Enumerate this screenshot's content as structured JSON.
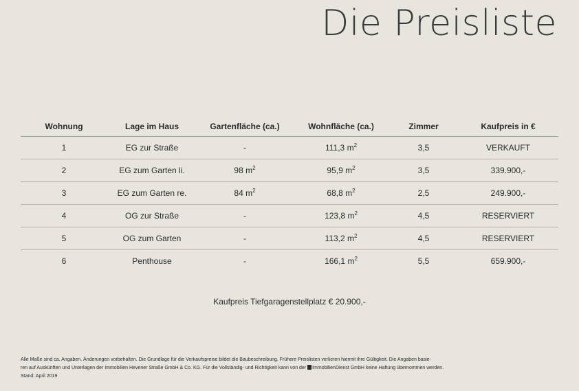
{
  "title": "Die Preisliste",
  "table": {
    "headers": [
      "Wohnung",
      "Lage im Haus",
      "Gartenfläche (ca.)",
      "Wohnfläche (ca.)",
      "Zimmer",
      "Kaufpreis in €"
    ],
    "area_unit": "m",
    "area_exp": "2",
    "rows": [
      {
        "nr": "1",
        "lage": "EG zur Straße",
        "garten": "-",
        "garten_unit": "",
        "garten_exp": "",
        "wohn": "111,3 ",
        "zimmer": "3,5",
        "preis": "VERKAUFT"
      },
      {
        "nr": "2",
        "lage": "EG zum Garten li.",
        "garten": "98 ",
        "garten_unit": "m",
        "garten_exp": "2",
        "wohn": "95,9 ",
        "zimmer": "3,5",
        "preis": "339.900,-"
      },
      {
        "nr": "3",
        "lage": "EG zum Garten re.",
        "garten": "84 ",
        "garten_unit": "m",
        "garten_exp": "2",
        "wohn": "68,8 ",
        "zimmer": "2,5",
        "preis": "249.900,-"
      },
      {
        "nr": "4",
        "lage": "OG zur Straße",
        "garten": "-",
        "garten_unit": "",
        "garten_exp": "",
        "wohn": "123,8 ",
        "zimmer": "4,5",
        "preis": "RESERVIERT"
      },
      {
        "nr": "5",
        "lage": "OG zum Garten",
        "garten": "-",
        "garten_unit": "",
        "garten_exp": "",
        "wohn": "113,2 ",
        "zimmer": "4,5",
        "preis": "RESERVIERT"
      },
      {
        "nr": "6",
        "lage": "Penthouse",
        "garten": "-",
        "garten_unit": "",
        "garten_exp": "",
        "wohn": "166,1 ",
        "zimmer": "5,5",
        "preis": "659.900,-"
      }
    ]
  },
  "parking_note": "Kaufpreis Tiefgaragenstellplatz € 20.900,-",
  "footer": {
    "line1": "Alle Maße sind ca. Angaben. Änderungen vorbehalten. Die Grundlage für die Verkaufspreise bildet die Baubeschreibung. Frühere Preislisten verlieren hiermit ihre Gültigkeit. Die Angaben basie-",
    "line2": "ren auf Auskünften und Unterlagen der Immobilien Hevener Straße GmbH & Co. KG. Für die Vollständig- und Richtigkeit kann von der ",
    "line2_brand": "ImmobilienDienst GmbH keine Haftung übernommen werden.",
    "line3": "Stand: April 2019"
  }
}
